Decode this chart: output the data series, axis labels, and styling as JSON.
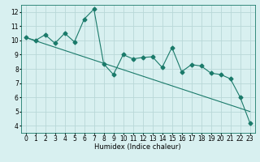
{
  "title": "",
  "xlabel": "Humidex (Indice chaleur)",
  "ylabel": "",
  "background_color": "#d8f0f0",
  "grid_color": "#b8d8d8",
  "line_color": "#1a7a6a",
  "x_data": [
    0,
    1,
    2,
    3,
    4,
    5,
    6,
    7,
    8,
    9,
    10,
    11,
    12,
    13,
    14,
    15,
    16,
    17,
    18,
    19,
    20,
    21,
    22,
    23
  ],
  "y_data": [
    10.2,
    10.0,
    10.4,
    9.8,
    10.5,
    9.9,
    11.5,
    12.2,
    8.35,
    7.6,
    9.0,
    8.7,
    8.8,
    8.85,
    8.1,
    9.5,
    7.8,
    8.3,
    8.2,
    7.7,
    7.6,
    7.3,
    6.0,
    4.2
  ],
  "trend_x": [
    0,
    23
  ],
  "trend_y": [
    10.2,
    5.0
  ],
  "xlim": [
    -0.5,
    23.5
  ],
  "ylim": [
    3.5,
    12.5
  ],
  "yticks": [
    4,
    5,
    6,
    7,
    8,
    9,
    10,
    11,
    12
  ],
  "xticks": [
    0,
    1,
    2,
    3,
    4,
    5,
    6,
    7,
    8,
    9,
    10,
    11,
    12,
    13,
    14,
    15,
    16,
    17,
    18,
    19,
    20,
    21,
    22,
    23
  ],
  "fontsize_label": 6,
  "fontsize_tick": 5.5,
  "marker_size": 2.5
}
